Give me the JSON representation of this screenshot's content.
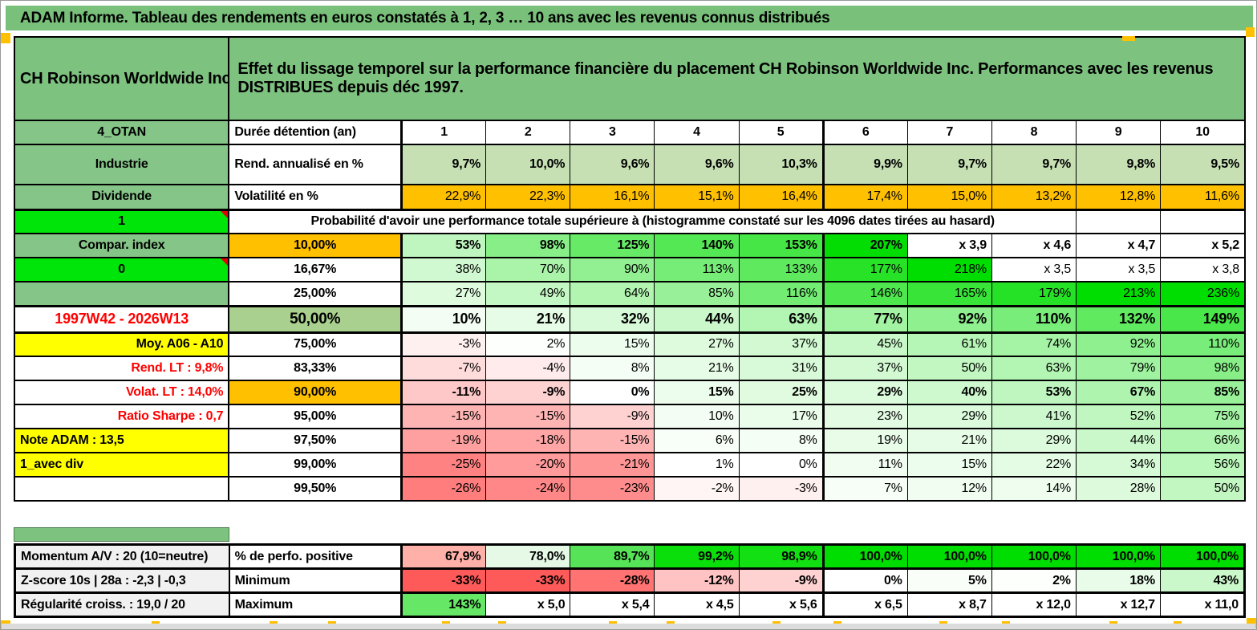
{
  "banner": {
    "text": "ADAM Informe. Tableau des rendements en euros constatés à 1, 2, 3 … 10 ans avec les revenus connus distribués"
  },
  "header": {
    "company": "CH Robinson Worldwide Inc",
    "description": "Effet du lissage temporel sur la performance financière du placement CH Robinson Worldwide Inc. Performances avec les revenus DISTRIBUES depuis déc 1997."
  },
  "columns": {
    "corner_label": "4_OTAN",
    "duration_label": "Durée détention (an)",
    "years": [
      "1",
      "2",
      "3",
      "4",
      "5",
      "6",
      "7",
      "8",
      "9",
      "10"
    ]
  },
  "annualized_row": {
    "a": "Industrie",
    "b": "Rend. annualisé en %",
    "values": [
      "9,7%",
      "10,0%",
      "9,6%",
      "9,6%",
      "10,3%",
      "9,9%",
      "9,7%",
      "9,7%",
      "9,8%",
      "9,5%"
    ],
    "cell_bg": "#C6E0B4"
  },
  "volatility_row": {
    "a": "Dividende",
    "b": "Volatilité en %",
    "values": [
      "22,9%",
      "22,3%",
      "16,1%",
      "15,1%",
      "16,4%",
      "17,4%",
      "15,0%",
      "13,2%",
      "12,8%",
      "11,6%"
    ],
    "cell_bg": "#FFC000"
  },
  "probability_header": {
    "a": "1",
    "text": "Probabilité d'avoir une performance totale supérieure à (histogramme constaté sur les 4096 dates tirées au hasard)"
  },
  "probability_rows": [
    {
      "a": "Compar. index",
      "a_style": "glabel",
      "b": "10,00%",
      "b_bg": "#FFC000",
      "bold": true,
      "cells": [
        {
          "t": "53%",
          "v": 53
        },
        {
          "t": "98%",
          "v": 98
        },
        {
          "t": "125%",
          "v": 125
        },
        {
          "t": "140%",
          "v": 140
        },
        {
          "t": "153%",
          "v": 153
        },
        {
          "t": "207%",
          "v": 207
        },
        {
          "t": "x 3,9"
        },
        {
          "t": "x 4,6"
        },
        {
          "t": "x 4,7"
        },
        {
          "t": "x 5,2"
        }
      ]
    },
    {
      "a": "0",
      "a_style": "bright",
      "b": "16,67%",
      "bold": false,
      "cells": [
        {
          "t": "38%",
          "v": 38
        },
        {
          "t": "70%",
          "v": 70
        },
        {
          "t": "90%",
          "v": 90
        },
        {
          "t": "113%",
          "v": 113
        },
        {
          "t": "133%",
          "v": 133
        },
        {
          "t": "177%",
          "v": 177
        },
        {
          "t": "218%",
          "v": 218
        },
        {
          "t": "x 3,5"
        },
        {
          "t": "x 3,5"
        },
        {
          "t": "x 3,8"
        }
      ]
    },
    {
      "a": "",
      "a_style": "glabel",
      "b": "25,00%",
      "bold": false,
      "cells": [
        {
          "t": "27%",
          "v": 27
        },
        {
          "t": "49%",
          "v": 49
        },
        {
          "t": "64%",
          "v": 64
        },
        {
          "t": "85%",
          "v": 85
        },
        {
          "t": "116%",
          "v": 116
        },
        {
          "t": "146%",
          "v": 146
        },
        {
          "t": "165%",
          "v": 165
        },
        {
          "t": "179%",
          "v": 179
        },
        {
          "t": "213%",
          "v": 213
        },
        {
          "t": "236%",
          "v": 236
        }
      ]
    },
    {
      "a": "1997W42 - 2026W13",
      "a_style": "redc",
      "b": "50,00%",
      "b_bg": "#A9D08E",
      "bold": true,
      "big": true,
      "thick": true,
      "cells": [
        {
          "t": "10%",
          "v": 10
        },
        {
          "t": "21%",
          "v": 21
        },
        {
          "t": "32%",
          "v": 32
        },
        {
          "t": "44%",
          "v": 44
        },
        {
          "t": "63%",
          "v": 63
        },
        {
          "t": "77%",
          "v": 77
        },
        {
          "t": "92%",
          "v": 92
        },
        {
          "t": "110%",
          "v": 110
        },
        {
          "t": "132%",
          "v": 132
        },
        {
          "t": "149%",
          "v": 149
        }
      ]
    },
    {
      "a": "Moy. A06 - A10",
      "a_style": "yellowr",
      "b": "75,00%",
      "bold": false,
      "cells": [
        {
          "t": "-3%",
          "v": -3
        },
        {
          "t": "2%",
          "v": 2
        },
        {
          "t": "15%",
          "v": 15
        },
        {
          "t": "27%",
          "v": 27
        },
        {
          "t": "37%",
          "v": 37
        },
        {
          "t": "45%",
          "v": 45
        },
        {
          "t": "61%",
          "v": 61
        },
        {
          "t": "74%",
          "v": 74
        },
        {
          "t": "92%",
          "v": 92
        },
        {
          "t": "110%",
          "v": 110
        }
      ]
    },
    {
      "a": "Rend. LT :   9,8%",
      "a_style": "redr",
      "b": "83,33%",
      "bold": false,
      "cells": [
        {
          "t": "-7%",
          "v": -7
        },
        {
          "t": "-4%",
          "v": -4
        },
        {
          "t": "8%",
          "v": 8
        },
        {
          "t": "21%",
          "v": 21
        },
        {
          "t": "31%",
          "v": 31
        },
        {
          "t": "37%",
          "v": 37
        },
        {
          "t": "50%",
          "v": 50
        },
        {
          "t": "63%",
          "v": 63
        },
        {
          "t": "79%",
          "v": 79
        },
        {
          "t": "98%",
          "v": 98
        }
      ]
    },
    {
      "a": "Volat. LT :   14,0%",
      "a_style": "redr",
      "b": "90,00%",
      "b_bg": "#FFC000",
      "bold": true,
      "cells": [
        {
          "t": "-11%",
          "v": -11
        },
        {
          "t": "-9%",
          "v": -9
        },
        {
          "t": "0%",
          "v": 0
        },
        {
          "t": "15%",
          "v": 15
        },
        {
          "t": "25%",
          "v": 25
        },
        {
          "t": "29%",
          "v": 29
        },
        {
          "t": "40%",
          "v": 40
        },
        {
          "t": "53%",
          "v": 53
        },
        {
          "t": "67%",
          "v": 67
        },
        {
          "t": "85%",
          "v": 85
        }
      ]
    },
    {
      "a": "Ratio Sharpe :   0,7",
      "a_style": "redr",
      "b": "95,00%",
      "bold": false,
      "cells": [
        {
          "t": "-15%",
          "v": -15
        },
        {
          "t": "-15%",
          "v": -15
        },
        {
          "t": "-9%",
          "v": -9
        },
        {
          "t": "10%",
          "v": 10
        },
        {
          "t": "17%",
          "v": 17
        },
        {
          "t": "23%",
          "v": 23
        },
        {
          "t": "29%",
          "v": 29
        },
        {
          "t": "41%",
          "v": 41
        },
        {
          "t": "52%",
          "v": 52
        },
        {
          "t": "75%",
          "v": 75
        }
      ]
    },
    {
      "a": "Note ADAM : 13,5",
      "a_style": "yellowl",
      "b": "97,50%",
      "bold": false,
      "cells": [
        {
          "t": "-19%",
          "v": -19
        },
        {
          "t": "-18%",
          "v": -18
        },
        {
          "t": "-15%",
          "v": -15
        },
        {
          "t": "6%",
          "v": 6
        },
        {
          "t": "8%",
          "v": 8
        },
        {
          "t": "19%",
          "v": 19
        },
        {
          "t": "21%",
          "v": 21
        },
        {
          "t": "29%",
          "v": 29
        },
        {
          "t": "44%",
          "v": 44
        },
        {
          "t": "66%",
          "v": 66
        }
      ]
    },
    {
      "a": "1_avec div",
      "a_style": "yellowl",
      "b": "99,00%",
      "bold": false,
      "cells": [
        {
          "t": "-25%",
          "v": -25
        },
        {
          "t": "-20%",
          "v": -20
        },
        {
          "t": "-21%",
          "v": -21
        },
        {
          "t": "1%",
          "v": 1
        },
        {
          "t": "0%",
          "v": 0
        },
        {
          "t": "11%",
          "v": 11
        },
        {
          "t": "15%",
          "v": 15
        },
        {
          "t": "22%",
          "v": 22
        },
        {
          "t": "34%",
          "v": 34
        },
        {
          "t": "56%",
          "v": 56
        }
      ]
    },
    {
      "a": "",
      "a_style": "white",
      "b": "99,50%",
      "bold": false,
      "cells": [
        {
          "t": "-26%",
          "v": -26
        },
        {
          "t": "-24%",
          "v": -24
        },
        {
          "t": "-23%",
          "v": -23
        },
        {
          "t": "-2%",
          "v": -2
        },
        {
          "t": "-3%",
          "v": -3
        },
        {
          "t": "7%",
          "v": 7
        },
        {
          "t": "12%",
          "v": 12
        },
        {
          "t": "14%",
          "v": 14
        },
        {
          "t": "28%",
          "v": 28
        },
        {
          "t": "50%",
          "v": 50
        }
      ]
    }
  ],
  "bottom_rows": [
    {
      "a": "Momentum A/V : 20 (10=neutre)",
      "b": "% de perfo. positive",
      "cells": [
        {
          "t": "67,9%",
          "bg": "#FFB0A8"
        },
        {
          "t": "78,0%",
          "bg": "#E6F8E6"
        },
        {
          "t": "89,7%",
          "bg": "#57E357"
        },
        {
          "t": "99,2%",
          "bg": "#0BDF0B"
        },
        {
          "t": "98,9%",
          "bg": "#12E012"
        },
        {
          "t": "100,0%",
          "bg": "#00DD00"
        },
        {
          "t": "100,0%",
          "bg": "#00DD00"
        },
        {
          "t": "100,0%",
          "bg": "#00DD00"
        },
        {
          "t": "100,0%",
          "bg": "#00DD00"
        },
        {
          "t": "100,0%",
          "bg": "#00DD00"
        }
      ]
    },
    {
      "a": "Z-score 10s | 28a : -2,3 | -0,3",
      "b": "Minimum",
      "cells": [
        {
          "t": "-33%",
          "v": -33
        },
        {
          "t": "-33%",
          "v": -33
        },
        {
          "t": "-28%",
          "v": -28
        },
        {
          "t": "-12%",
          "v": -12
        },
        {
          "t": "-9%",
          "v": -9
        },
        {
          "t": "0%",
          "v": 0
        },
        {
          "t": "5%",
          "v": 5
        },
        {
          "t": "2%",
          "v": 2
        },
        {
          "t": "18%",
          "v": 18
        },
        {
          "t": "43%",
          "v": 43
        }
      ]
    },
    {
      "a": "Régularité croiss. : 19,0 / 20",
      "b": "Maximum",
      "cells": [
        {
          "t": "143%",
          "bg": "#66E866"
        },
        {
          "t": "x 5,0"
        },
        {
          "t": "x 5,4"
        },
        {
          "t": "x 4,5"
        },
        {
          "t": "x 5,6"
        },
        {
          "t": "x 6,5"
        },
        {
          "t": "x 8,7"
        },
        {
          "t": "x 12,0"
        },
        {
          "t": "x 12,7"
        },
        {
          "t": "x 11,0"
        }
      ]
    }
  ],
  "colors": {
    "banner_green": "#79C17B",
    "header_green": "#7EC280",
    "label_green": "#86C588",
    "bright_green": "#00E509",
    "olive_green": "#A9D08E",
    "pale_green_row": "#C6E0B4",
    "orange": "#FFC000",
    "yellow": "#FFFF00",
    "red_text": "#FF0000",
    "gray_label": "#F1F1F1",
    "heat_green_max": "#00DD00",
    "heat_red_max": "#FF5A5A"
  }
}
